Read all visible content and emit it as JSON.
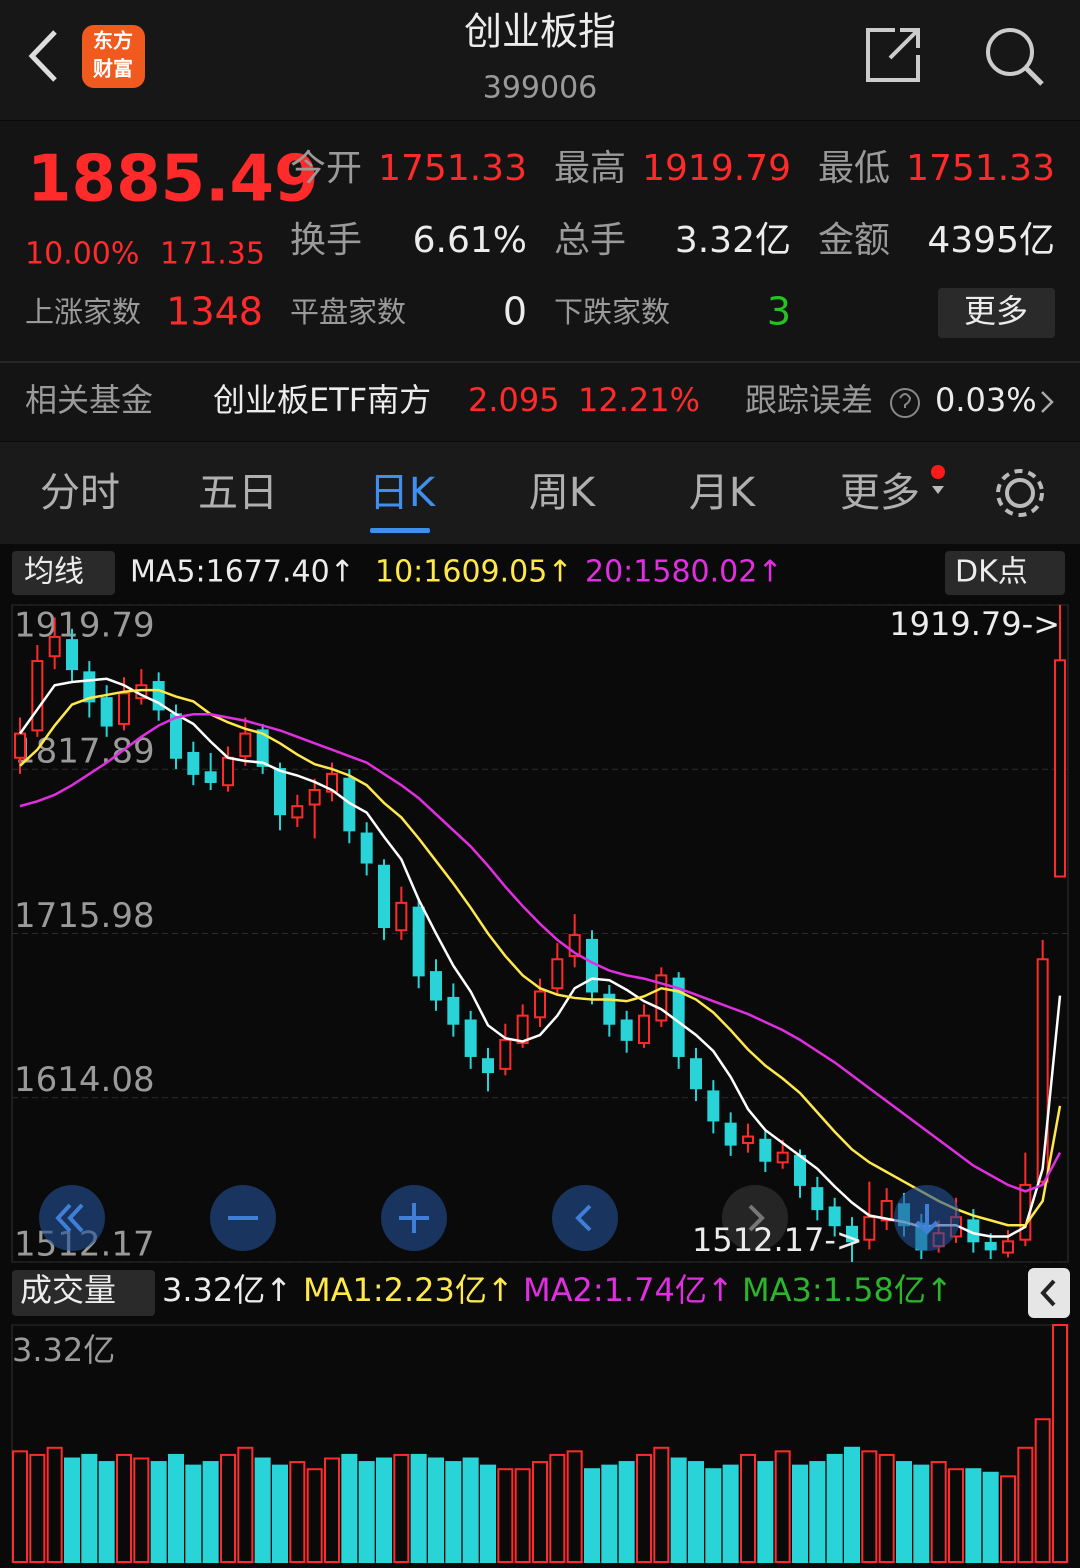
{
  "header": {
    "logo": [
      "东方",
      "财富"
    ],
    "title": "创业板指",
    "code": "399006"
  },
  "quote": {
    "price": "1885.49",
    "change_pct": "10.00%",
    "change": "171.35",
    "stats": [
      {
        "label": "今开",
        "value": "1751.33"
      },
      {
        "label": "最高",
        "value": "1919.79"
      },
      {
        "label": "最低",
        "value": "1751.33"
      },
      {
        "label": "换手",
        "value": "6.61%"
      },
      {
        "label": "总手",
        "value": "3.32亿"
      },
      {
        "label": "金额",
        "value": "4395亿"
      }
    ],
    "breadth": [
      {
        "label": "上涨家数",
        "value": "1348"
      },
      {
        "label": "平盘家数",
        "value": "0"
      },
      {
        "label": "下跌家数",
        "value": "3"
      }
    ],
    "more": "更多"
  },
  "fund": {
    "label": "相关基金",
    "name": "创业板ETF南方",
    "price": "2.095",
    "pct": "12.21%",
    "tracking_label": "跟踪误差",
    "tracking_value": "0.03%"
  },
  "tabs": {
    "items": [
      "分时",
      "五日",
      "日K",
      "周K",
      "月K",
      "更多"
    ],
    "active": 2
  },
  "indicator_bar": {
    "selector": "均线",
    "items": [
      "MA5:1677.40↑",
      "10:1609.05↑",
      "20:1580.02↑"
    ],
    "dk": "DK点"
  },
  "volume_bar": {
    "selector": "成交量",
    "items": [
      "3.32亿↑",
      "MA1:2.23亿↑",
      "MA2:1.74亿↑",
      "MA3:1.58亿↑"
    ]
  },
  "chart_data": [
    {
      "type": "candlestick",
      "up_color": "#ff2b2b",
      "down_color": "#28d4d8",
      "ylim": [
        1512.17,
        1919.79
      ],
      "yticks": [
        1512.17,
        1614.08,
        1715.98,
        1817.89,
        1919.79
      ],
      "grid": true,
      "annotations": [
        "1919.79->",
        "1512.17->"
      ],
      "candles": [
        [
          1825,
          1850,
          1815,
          1840
        ],
        [
          1842,
          1895,
          1838,
          1885
        ],
        [
          1888,
          1912,
          1880,
          1900
        ],
        [
          1898,
          1905,
          1872,
          1880
        ],
        [
          1878,
          1885,
          1850,
          1860
        ],
        [
          1862,
          1870,
          1838,
          1845
        ],
        [
          1846,
          1875,
          1842,
          1865
        ],
        [
          1862,
          1880,
          1858,
          1870
        ],
        [
          1872,
          1878,
          1848,
          1855
        ],
        [
          1852,
          1858,
          1818,
          1825
        ],
        [
          1828,
          1835,
          1808,
          1815
        ],
        [
          1816,
          1828,
          1805,
          1810
        ],
        [
          1808,
          1832,
          1804,
          1825
        ],
        [
          1826,
          1850,
          1820,
          1840
        ],
        [
          1842,
          1846,
          1815,
          1820
        ],
        [
          1818,
          1822,
          1780,
          1790
        ],
        [
          1788,
          1802,
          1782,
          1795
        ],
        [
          1796,
          1812,
          1775,
          1805
        ],
        [
          1804,
          1822,
          1798,
          1815
        ],
        [
          1812,
          1818,
          1772,
          1780
        ],
        [
          1778,
          1785,
          1752,
          1760
        ],
        [
          1758,
          1762,
          1712,
          1720
        ],
        [
          1718,
          1745,
          1712,
          1735
        ],
        [
          1732,
          1738,
          1682,
          1690
        ],
        [
          1692,
          1700,
          1668,
          1675
        ],
        [
          1676,
          1685,
          1652,
          1660
        ],
        [
          1662,
          1668,
          1632,
          1640
        ],
        [
          1638,
          1645,
          1618,
          1630
        ],
        [
          1632,
          1660,
          1628,
          1650
        ],
        [
          1648,
          1672,
          1645,
          1665
        ],
        [
          1664,
          1688,
          1658,
          1680
        ],
        [
          1682,
          1710,
          1678,
          1700
        ],
        [
          1702,
          1728,
          1695,
          1715
        ],
        [
          1712,
          1718,
          1672,
          1680
        ],
        [
          1678,
          1684,
          1652,
          1660
        ],
        [
          1662,
          1668,
          1642,
          1650
        ],
        [
          1648,
          1672,
          1645,
          1665
        ],
        [
          1662,
          1695,
          1658,
          1690
        ],
        [
          1688,
          1692,
          1632,
          1640
        ],
        [
          1638,
          1645,
          1612,
          1620
        ],
        [
          1618,
          1625,
          1592,
          1600
        ],
        [
          1598,
          1605,
          1578,
          1585
        ],
        [
          1586,
          1598,
          1580,
          1590
        ],
        [
          1588,
          1594,
          1568,
          1575
        ],
        [
          1574,
          1588,
          1570,
          1580
        ],
        [
          1578,
          1582,
          1552,
          1560
        ],
        [
          1558,
          1565,
          1538,
          1545
        ],
        [
          1546,
          1552,
          1528,
          1535
        ],
        [
          1534,
          1540,
          1512.17,
          1525
        ],
        [
          1526,
          1562,
          1520,
          1540
        ],
        [
          1538,
          1558,
          1532,
          1550
        ],
        [
          1548,
          1555,
          1528,
          1535
        ],
        [
          1536,
          1542,
          1514,
          1520
        ],
        [
          1522,
          1538,
          1518,
          1530
        ],
        [
          1528,
          1552,
          1524,
          1540
        ],
        [
          1538,
          1545,
          1518,
          1525
        ],
        [
          1524,
          1530,
          1514,
          1520
        ],
        [
          1518,
          1532,
          1515,
          1525
        ],
        [
          1526,
          1580,
          1522,
          1560
        ],
        [
          1562,
          1712,
          1560,
          1700
        ],
        [
          1751.33,
          1919.79,
          1751.33,
          1885.49
        ]
      ],
      "series": [
        {
          "color": "#ffffff",
          "values": [
            1840,
            1855,
            1870,
            1872,
            1873,
            1874,
            1870,
            1864,
            1859,
            1852,
            1846,
            1835,
            1825,
            1823,
            1822,
            1817,
            1814,
            1810,
            1805,
            1797,
            1791,
            1776,
            1762,
            1737,
            1716,
            1696,
            1680,
            1659,
            1651,
            1649,
            1653,
            1665,
            1682,
            1688,
            1687,
            1681,
            1674,
            1669,
            1661,
            1653,
            1643,
            1627,
            1607,
            1594,
            1586,
            1578,
            1570,
            1559,
            1549,
            1541,
            1539,
            1537,
            1534,
            1535,
            1535,
            1530,
            1528,
            1528,
            1534,
            1570,
            1677.4
          ]
        },
        {
          "color": "#ffe84a",
          "values": [
            1820,
            1830,
            1845,
            1858,
            1862,
            1864,
            1866,
            1867,
            1867,
            1863,
            1860,
            1852,
            1847,
            1843,
            1840,
            1834,
            1827,
            1821,
            1818,
            1814,
            1808,
            1797,
            1788,
            1775,
            1761,
            1747,
            1732,
            1716,
            1702,
            1690,
            1682,
            1678,
            1676,
            1675,
            1675,
            1674,
            1677,
            1682,
            1680,
            1675,
            1667,
            1656,
            1644,
            1634,
            1626,
            1617,
            1605,
            1593,
            1582,
            1574,
            1568,
            1562,
            1556,
            1550,
            1545,
            1541,
            1538,
            1535,
            1535,
            1550,
            1609.05
          ]
        },
        {
          "color": "#e02fe0",
          "values": [
            1795,
            1798,
            1802,
            1808,
            1815,
            1822,
            1830,
            1838,
            1845,
            1850,
            1852,
            1852,
            1850,
            1848,
            1845,
            1842,
            1838,
            1834,
            1830,
            1826,
            1822,
            1815,
            1808,
            1800,
            1790,
            1780,
            1770,
            1758,
            1745,
            1733,
            1722,
            1712,
            1704,
            1698,
            1693,
            1690,
            1688,
            1685,
            1682,
            1678,
            1674,
            1670,
            1666,
            1661,
            1656,
            1650,
            1643,
            1636,
            1628,
            1620,
            1612,
            1604,
            1596,
            1588,
            1580,
            1572,
            1566,
            1560,
            1556,
            1560,
            1580.02
          ]
        }
      ]
    },
    {
      "type": "bar",
      "ylim": [
        0,
        3.32
      ],
      "yticks": [
        {
          "value": 3.32,
          "label": "3.32亿"
        }
      ],
      "values": [
        1.55,
        1.5,
        1.6,
        1.45,
        1.5,
        1.4,
        1.5,
        1.45,
        1.4,
        1.5,
        1.35,
        1.4,
        1.5,
        1.6,
        1.45,
        1.35,
        1.4,
        1.3,
        1.45,
        1.5,
        1.4,
        1.45,
        1.5,
        1.5,
        1.45,
        1.4,
        1.45,
        1.35,
        1.3,
        1.3,
        1.4,
        1.5,
        1.55,
        1.3,
        1.35,
        1.4,
        1.5,
        1.6,
        1.45,
        1.4,
        1.3,
        1.35,
        1.5,
        1.4,
        1.55,
        1.35,
        1.4,
        1.5,
        1.6,
        1.55,
        1.5,
        1.4,
        1.35,
        1.4,
        1.3,
        1.3,
        1.25,
        1.2,
        1.6,
        2.0,
        3.32
      ]
    }
  ]
}
